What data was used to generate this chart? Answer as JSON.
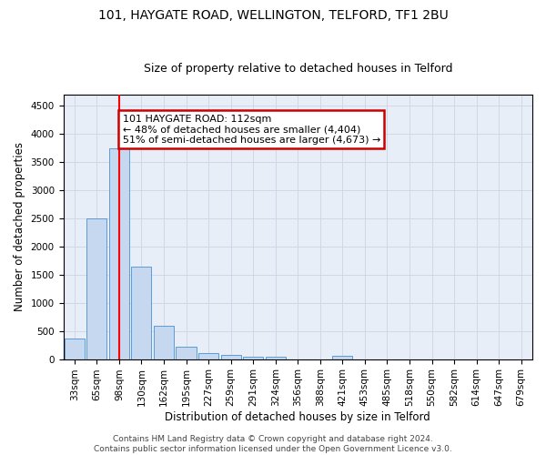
{
  "title": "101, HAYGATE ROAD, WELLINGTON, TELFORD, TF1 2BU",
  "subtitle": "Size of property relative to detached houses in Telford",
  "xlabel": "Distribution of detached houses by size in Telford",
  "ylabel": "Number of detached properties",
  "categories": [
    "33sqm",
    "65sqm",
    "98sqm",
    "130sqm",
    "162sqm",
    "195sqm",
    "227sqm",
    "259sqm",
    "291sqm",
    "324sqm",
    "356sqm",
    "388sqm",
    "421sqm",
    "453sqm",
    "485sqm",
    "518sqm",
    "550sqm",
    "582sqm",
    "614sqm",
    "647sqm",
    "679sqm"
  ],
  "values": [
    370,
    2500,
    3750,
    1640,
    590,
    225,
    110,
    70,
    40,
    35,
    0,
    0,
    60,
    0,
    0,
    0,
    0,
    0,
    0,
    0,
    0
  ],
  "bar_color": "#c5d8f0",
  "bar_edge_color": "#5b9bd5",
  "red_line_x": 2,
  "annotation_text": "101 HAYGATE ROAD: 112sqm\n← 48% of detached houses are smaller (4,404)\n51% of semi-detached houses are larger (4,673) →",
  "annotation_box_color": "#ffffff",
  "annotation_box_edge_color": "#cc0000",
  "ylim": [
    0,
    4700
  ],
  "yticks": [
    0,
    500,
    1000,
    1500,
    2000,
    2500,
    3000,
    3500,
    4000,
    4500
  ],
  "grid_color": "#d0d8e8",
  "background_color": "#e8eef8",
  "footer": "Contains HM Land Registry data © Crown copyright and database right 2024.\nContains public sector information licensed under the Open Government Licence v3.0.",
  "title_fontsize": 10,
  "subtitle_fontsize": 9,
  "xlabel_fontsize": 8.5,
  "ylabel_fontsize": 8.5,
  "tick_fontsize": 7.5,
  "footer_fontsize": 6.5,
  "annotation_fontsize": 8
}
